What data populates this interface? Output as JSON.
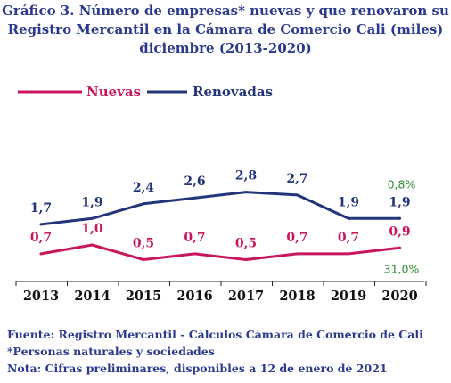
{
  "header": {
    "title_lines": [
      "Gráfico 3. Número de empresas* nuevas y que renovaron su",
      "Registro Mercantil  en la Cámara de Comercio Cali (miles)",
      "diciembre (2013-2020)"
    ]
  },
  "chart_data": {
    "type": "line",
    "categories": [
      "2013",
      "2014",
      "2015",
      "2016",
      "2017",
      "2018",
      "2019",
      "2020"
    ],
    "series": [
      {
        "name": "Nuevas",
        "color": "#c8175d",
        "values": [
          0.7,
          1.0,
          0.5,
          0.7,
          0.5,
          0.7,
          0.7,
          0.9
        ],
        "labels": [
          "0,7",
          "1,0",
          "0,5",
          "0,7",
          "0,5",
          "0,7",
          "0,7",
          "0,9"
        ]
      },
      {
        "name": "Renovadas",
        "color": "#23357a",
        "values": [
          1.7,
          1.9,
          2.4,
          2.6,
          2.8,
          2.7,
          1.9,
          1.9
        ],
        "labels": [
          "1,7",
          "1,9",
          "2,4",
          "2,6",
          "2,8",
          "2,7",
          "1,9",
          "1,9"
        ]
      }
    ],
    "annotations": [
      {
        "text": "0,8%",
        "series": "Renovadas",
        "category": "2020",
        "color": "#2e8b2e"
      },
      {
        "text": "31,0%",
        "series": "Nuevas",
        "category": "2020",
        "color": "#2e8b2e"
      }
    ],
    "legend_position": "top-left",
    "grid": false
  },
  "footer": {
    "source": "Fuente: Registro Mercantil - Cálculos Cámara de Comercio de Cali",
    "note1": "*Personas naturales y sociedades",
    "note2": "Nota: Cifras preliminares, disponibles a 12 de enero de 2021"
  }
}
